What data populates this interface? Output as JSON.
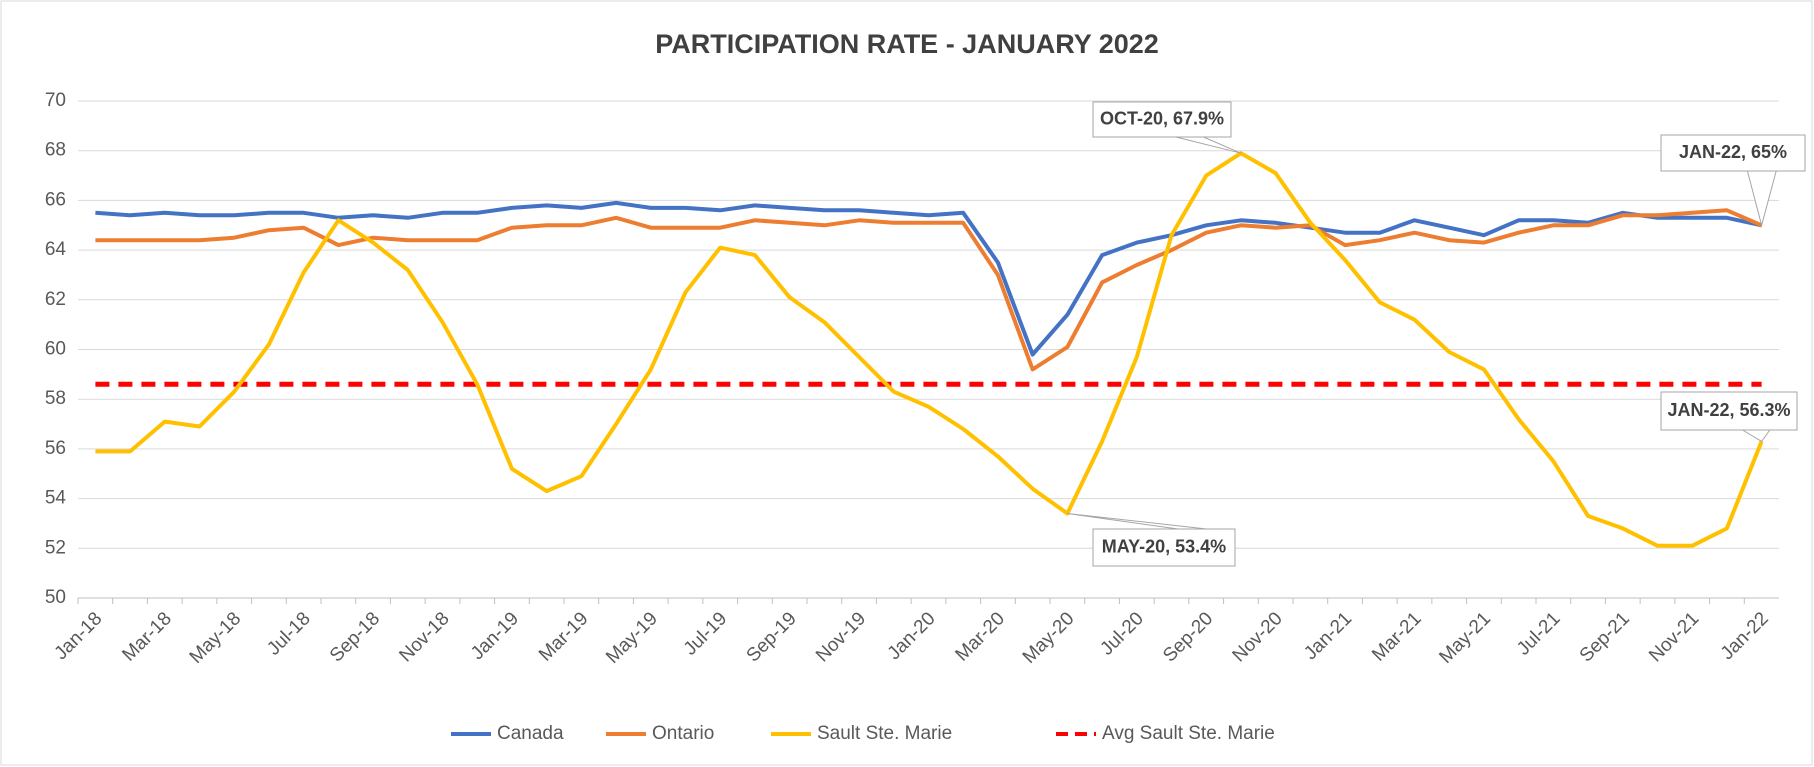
{
  "chart_data": {
    "type": "line",
    "title": "PARTICIPATION RATE - JANUARY 2022",
    "categories": [
      "Jan-18",
      null,
      "Mar-18",
      null,
      "May-18",
      null,
      "Jul-18",
      null,
      "Sep-18",
      null,
      "Nov-18",
      null,
      "Jan-19",
      null,
      "Mar-19",
      null,
      "May-19",
      null,
      "Jul-19",
      null,
      "Sep-19",
      null,
      "Nov-19",
      null,
      "Jan-20",
      null,
      "Mar-20",
      null,
      "May-20",
      null,
      "Jul-20",
      null,
      "Sep-20",
      null,
      "Nov-20",
      null,
      "Jan-21",
      null,
      "Mar-21",
      null,
      "May-21",
      null,
      "Jul-21",
      null,
      "Sep-21",
      null,
      "Nov-21",
      null,
      "Jan-22"
    ],
    "series": [
      {
        "name": "Canada",
        "color": "#4472c4",
        "style": "solid",
        "values": [
          65.5,
          65.4,
          65.5,
          65.4,
          65.4,
          65.5,
          65.5,
          65.3,
          65.4,
          65.3,
          65.5,
          65.5,
          65.7,
          65.8,
          65.7,
          65.9,
          65.7,
          65.7,
          65.6,
          65.8,
          65.7,
          65.6,
          65.6,
          65.5,
          65.4,
          65.5,
          63.5,
          59.8,
          61.4,
          63.8,
          64.3,
          64.6,
          65.0,
          65.2,
          65.1,
          64.9,
          64.7,
          64.7,
          65.2,
          64.9,
          64.6,
          65.2,
          65.2,
          65.1,
          65.5,
          65.3,
          65.3,
          65.3,
          65.0
        ]
      },
      {
        "name": "Ontario",
        "color": "#ed7d31",
        "style": "solid",
        "values": [
          64.4,
          64.4,
          64.4,
          64.4,
          64.5,
          64.8,
          64.9,
          64.2,
          64.5,
          64.4,
          64.4,
          64.4,
          64.9,
          65.0,
          65.0,
          65.3,
          64.9,
          64.9,
          64.9,
          65.2,
          65.1,
          65.0,
          65.2,
          65.1,
          65.1,
          65.1,
          63.0,
          59.2,
          60.1,
          62.7,
          63.4,
          64.0,
          64.7,
          65.0,
          64.9,
          65.0,
          64.2,
          64.4,
          64.7,
          64.4,
          64.3,
          64.7,
          65.0,
          65.0,
          65.4,
          65.4,
          65.5,
          65.6,
          65.0
        ]
      },
      {
        "name": "Sault Ste. Marie",
        "color": "#ffc000",
        "style": "solid",
        "values": [
          55.9,
          55.9,
          57.1,
          56.9,
          58.3,
          60.2,
          63.1,
          65.2,
          64.3,
          63.2,
          61.1,
          58.6,
          55.2,
          54.3,
          54.9,
          57.0,
          59.2,
          62.3,
          64.1,
          63.8,
          62.1,
          61.1,
          59.7,
          58.3,
          57.7,
          56.8,
          55.7,
          54.4,
          53.4,
          56.3,
          59.7,
          64.6,
          67.0,
          67.9,
          67.1,
          65.1,
          63.6,
          61.9,
          61.2,
          59.9,
          59.2,
          57.2,
          55.5,
          53.3,
          52.8,
          52.1,
          52.1,
          52.8,
          56.3
        ]
      },
      {
        "name": "Avg Sault Ste. Marie",
        "color": "#ff0000",
        "style": "dashed",
        "values": [
          58.6,
          58.6,
          58.6,
          58.6,
          58.6,
          58.6,
          58.6,
          58.6,
          58.6,
          58.6,
          58.6,
          58.6,
          58.6,
          58.6,
          58.6,
          58.6,
          58.6,
          58.6,
          58.6,
          58.6,
          58.6,
          58.6,
          58.6,
          58.6,
          58.6,
          58.6,
          58.6,
          58.6,
          58.6,
          58.6,
          58.6,
          58.6,
          58.6,
          58.6,
          58.6,
          58.6,
          58.6,
          58.6,
          58.6,
          58.6,
          58.6,
          58.6,
          58.6,
          58.6,
          58.6,
          58.6,
          58.6,
          58.6,
          58.6
        ]
      }
    ],
    "annotations": [
      "OCT-20, 67.9%",
      "JAN-22, 65%",
      "MAY-20, 53.4%",
      "JAN-22, 56.3%"
    ],
    "ylim": [
      50,
      70
    ],
    "yticks": [
      50,
      52,
      54,
      56,
      58,
      60,
      62,
      64,
      66,
      68,
      70
    ],
    "grid": true,
    "legend": "bottom"
  }
}
